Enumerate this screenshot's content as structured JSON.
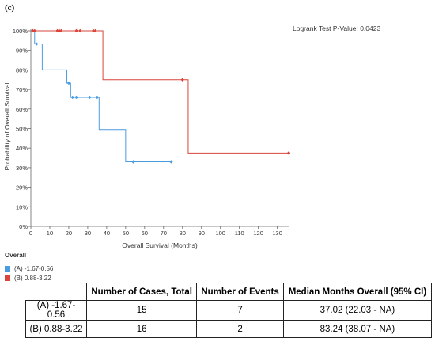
{
  "panel_label": "(c)",
  "pvalue_text": "Logrank Test P-Value: 0.0423",
  "chart_data": {
    "type": "line",
    "step": true,
    "xlabel": "Overall Survival (Months)",
    "ylabel": "Probability of Overall Survival",
    "xlim": [
      0,
      136
    ],
    "ylim": [
      0,
      100
    ],
    "x_ticks": [
      0,
      10,
      20,
      30,
      40,
      50,
      60,
      70,
      80,
      90,
      100,
      110,
      120,
      130
    ],
    "y_ticks": [
      0,
      10,
      20,
      30,
      40,
      50,
      60,
      70,
      80,
      90,
      100
    ],
    "y_tick_suffix": "%",
    "grid": false,
    "legend_title": "Overall",
    "legend_position": "bottom-left",
    "series": [
      {
        "name": "(A) -1.67-0.56",
        "color": "#4a9ce0",
        "steps": [
          [
            0,
            100
          ],
          [
            2,
            93.3
          ],
          [
            6,
            80
          ],
          [
            19,
            73.3
          ],
          [
            21,
            66
          ],
          [
            36,
            49.5
          ],
          [
            50,
            33
          ],
          [
            74,
            33
          ]
        ],
        "censored": [
          [
            1,
            100
          ],
          [
            3,
            93.3
          ],
          [
            20,
            73.3
          ],
          [
            22,
            66
          ],
          [
            24,
            66
          ],
          [
            31,
            66
          ],
          [
            35,
            66
          ],
          [
            54,
            33
          ],
          [
            74,
            33
          ]
        ]
      },
      {
        "name": "(B) 0.88-3.22",
        "color": "#d9453a",
        "steps": [
          [
            0,
            100
          ],
          [
            38,
            75
          ],
          [
            83,
            37.5
          ],
          [
            136,
            37.5
          ]
        ],
        "censored": [
          [
            1,
            100
          ],
          [
            2,
            100
          ],
          [
            14,
            100
          ],
          [
            15,
            100
          ],
          [
            16,
            100
          ],
          [
            24,
            100
          ],
          [
            26,
            100
          ],
          [
            33,
            100
          ],
          [
            34,
            100
          ],
          [
            80,
            75
          ],
          [
            136,
            37.5
          ]
        ]
      }
    ]
  },
  "table": {
    "headers": [
      "",
      "Number of Cases, Total",
      "Number of Events",
      "Median Months Overall (95% CI)"
    ],
    "rows": [
      [
        "(A) -1.67-0.56",
        "15",
        "7",
        "37.02 (22.03 - NA)"
      ],
      [
        "(B) 0.88-3.22",
        "16",
        "2",
        "83.24 (38.07 - NA)"
      ]
    ]
  }
}
